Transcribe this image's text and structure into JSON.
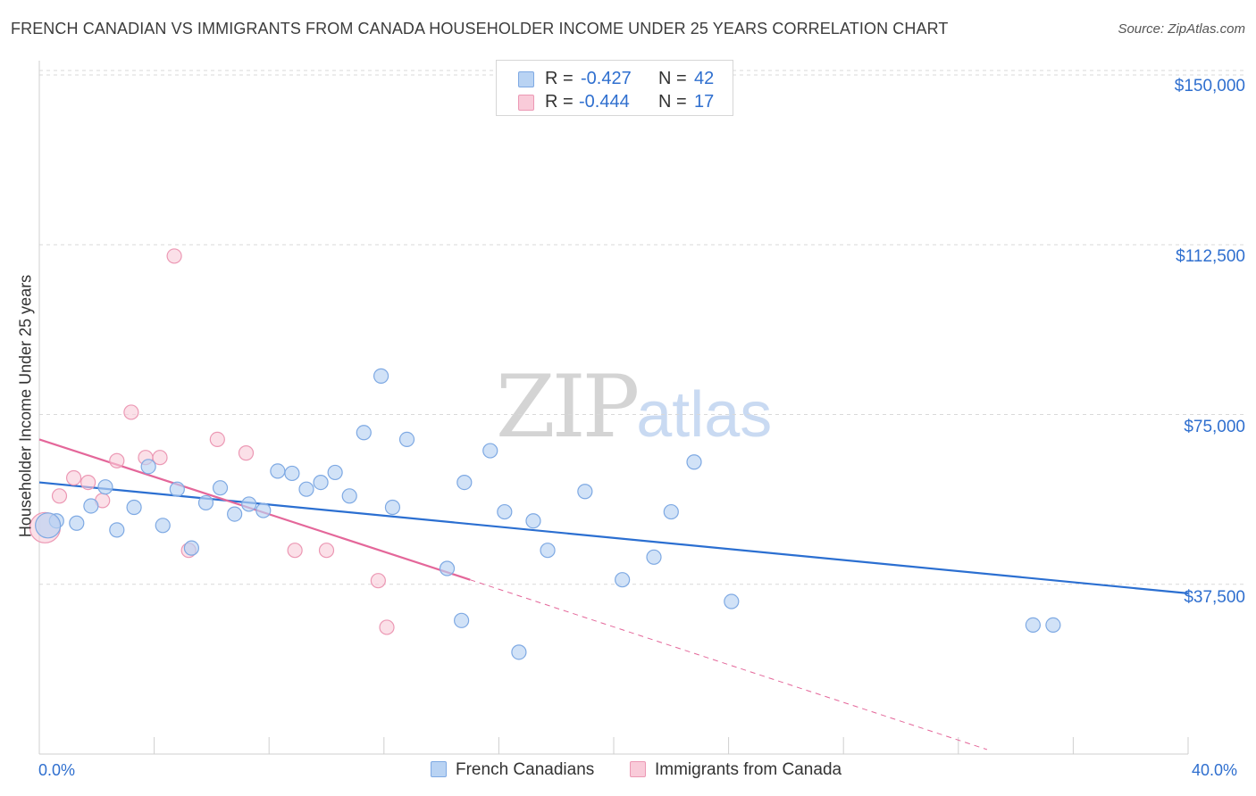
{
  "header": {
    "title": "FRENCH CANADIAN VS IMMIGRANTS FROM CANADA HOUSEHOLDER INCOME UNDER 25 YEARS CORRELATION CHART",
    "source": "Source: ZipAtlas.com"
  },
  "watermark": {
    "zip": "ZIP",
    "atlas": "atlas"
  },
  "legend": {
    "rows": [
      {
        "r_label": "R =",
        "r_value": "-0.427",
        "n_label": "N =",
        "n_value": "42",
        "color": "#a9c8f0",
        "border": "#6fa0e0"
      },
      {
        "r_label": "R =",
        "r_value": "-0.444",
        "n_label": "N =",
        "n_value": "17",
        "color": "#f8c6d6",
        "border": "#e890ad"
      }
    ]
  },
  "bottom_legend": {
    "series1": "French Canadians",
    "series2": "Immigrants from Canada"
  },
  "axis": {
    "ylabel": "Householder Income Under 25 years",
    "x_min_label": "0.0%",
    "x_max_label": "40.0%",
    "y_ticks": [
      "$150,000",
      "$112,500",
      "$75,000",
      "$37,500"
    ]
  },
  "colors": {
    "blue_fill": "#b9d3f3",
    "blue_stroke": "#7ea9e3",
    "blue_line": "#2b6fd1",
    "pink_fill": "#f9cbd9",
    "pink_stroke": "#ec98b4",
    "pink_line": "#e4679a",
    "grid": "#d9d9d9"
  },
  "chart_data": {
    "type": "scatter",
    "xlabel": "",
    "ylabel": "Householder Income Under 25 years",
    "xlim": [
      0,
      40
    ],
    "ylim": [
      0,
      155000
    ],
    "y_ticks": [
      37500,
      75000,
      112500,
      150000
    ],
    "grid": true,
    "series": [
      {
        "name": "French Canadians",
        "points": [
          [
            0.6,
            51500
          ],
          [
            1.3,
            51000
          ],
          [
            1.8,
            54800
          ],
          [
            2.3,
            59000
          ],
          [
            2.7,
            49500
          ],
          [
            3.3,
            54500
          ],
          [
            3.8,
            63500
          ],
          [
            4.3,
            50500
          ],
          [
            4.8,
            58500
          ],
          [
            5.3,
            45500
          ],
          [
            5.8,
            55500
          ],
          [
            6.3,
            58800
          ],
          [
            6.8,
            53000
          ],
          [
            7.3,
            55200
          ],
          [
            7.8,
            53800
          ],
          [
            8.3,
            62500
          ],
          [
            8.8,
            62000
          ],
          [
            9.3,
            58500
          ],
          [
            9.8,
            60000
          ],
          [
            10.3,
            62200
          ],
          [
            10.8,
            57000
          ],
          [
            11.3,
            71000
          ],
          [
            11.9,
            83500
          ],
          [
            12.3,
            54500
          ],
          [
            12.8,
            69500
          ],
          [
            14.2,
            41000
          ],
          [
            14.7,
            29500
          ],
          [
            14.8,
            60000
          ],
          [
            15.7,
            67000
          ],
          [
            16.2,
            53500
          ],
          [
            16.7,
            22500
          ],
          [
            17.2,
            51500
          ],
          [
            17.7,
            45000
          ],
          [
            19.0,
            58000
          ],
          [
            20.3,
            38500
          ],
          [
            21.4,
            43500
          ],
          [
            22.0,
            53500
          ],
          [
            22.8,
            64500
          ],
          [
            24.1,
            33700
          ],
          [
            34.6,
            28500
          ],
          [
            35.3,
            28500
          ],
          [
            0.3,
            50500
          ]
        ],
        "trend": {
          "x": [
            0,
            40
          ],
          "y": [
            60000,
            35500
          ]
        }
      },
      {
        "name": "Immigrants from Canada",
        "points": [
          [
            0.2,
            50000
          ],
          [
            0.7,
            57000
          ],
          [
            1.2,
            61000
          ],
          [
            1.7,
            60000
          ],
          [
            2.2,
            56000
          ],
          [
            2.7,
            64800
          ],
          [
            3.2,
            75500
          ],
          [
            3.7,
            65500
          ],
          [
            4.2,
            65500
          ],
          [
            4.7,
            110000
          ],
          [
            5.2,
            45000
          ],
          [
            6.2,
            69500
          ],
          [
            7.2,
            66500
          ],
          [
            8.9,
            45000
          ],
          [
            10.0,
            45000
          ],
          [
            11.8,
            38300
          ],
          [
            12.1,
            28000
          ]
        ],
        "trend": {
          "x": [
            0,
            15
          ],
          "y": [
            69500,
            38500
          ]
        },
        "trend_extension": {
          "x": [
            15,
            33
          ],
          "y": [
            38500,
            1000
          ]
        }
      }
    ]
  }
}
